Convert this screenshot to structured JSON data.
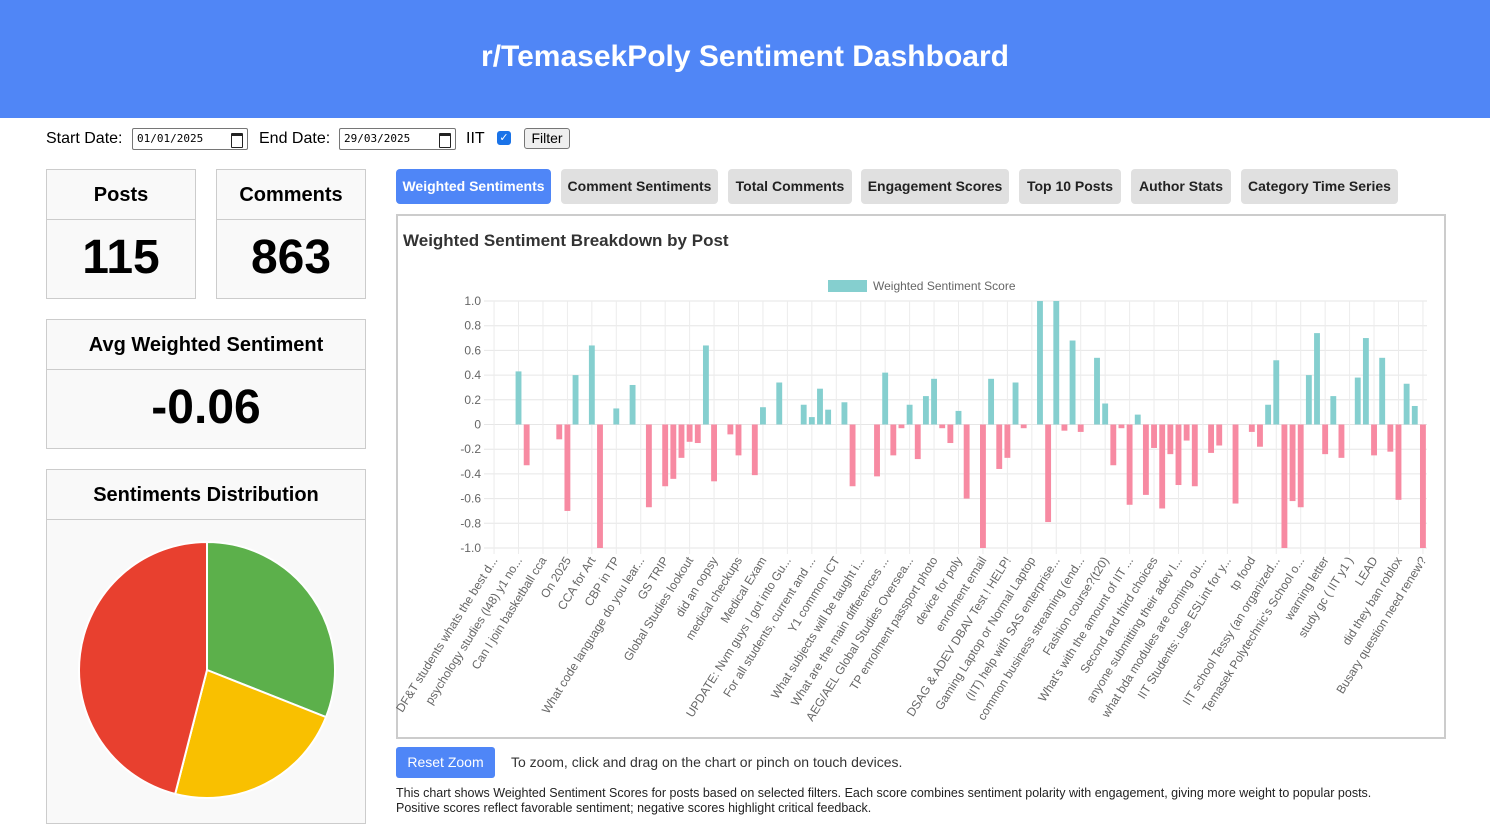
{
  "header": {
    "title": "r/TemasekPoly Sentiment Dashboard"
  },
  "filters": {
    "start_label": "Start Date:",
    "start_date": "01/01/2025",
    "end_label": "End Date:",
    "end_date": "29/03/2025",
    "checkbox_label": "IIT",
    "checked": true,
    "button": "Filter"
  },
  "stats": [
    {
      "label": "Posts",
      "value": 115
    },
    {
      "label": "Comments",
      "value": 863
    },
    {
      "label": "Avg Weighted Sentiment",
      "value": -0.06
    }
  ],
  "tabs": {
    "items": [
      "Weighted Sentiments",
      "Comment Sentiments",
      "Total Comments",
      "Engagement Scores",
      "Top 10 Posts",
      "Author Stats",
      "Category Time Series"
    ],
    "active": 0
  },
  "chart_data": [
    {
      "type": "bar",
      "title": "Weighted Sentiment Breakdown by Post",
      "categories": [
        "DF&T students whats the best d...",
        null,
        null,
        "psychology studies (l48) y1 no...",
        null,
        null,
        "Can I join basketball cca",
        null,
        null,
        "On 2025",
        null,
        null,
        "CCA for Art",
        null,
        null,
        "CBP in TP",
        null,
        null,
        "What code language do you lear...",
        null,
        null,
        "GS TRIP",
        null,
        null,
        "Global Studies lookout",
        null,
        null,
        "did an oopsy",
        null,
        null,
        "medical checkups",
        null,
        null,
        "Medical Exam",
        null,
        null,
        "UPDATE: Nvm guys I got into Gu...",
        null,
        null,
        "For all students, current and ...",
        null,
        null,
        "Y1 common ICT",
        null,
        null,
        "What subjects will be taught i...",
        null,
        null,
        "What are the main differences ...",
        null,
        null,
        "AEG/AEL Global Studies Oversea...",
        null,
        null,
        "TP enrolment passport photo",
        null,
        null,
        "device for poly",
        null,
        null,
        "enrolment email",
        null,
        null,
        "DSAG & ADEV DBAV Test ! HELP!",
        null,
        null,
        "Gaming Laptop or Normal Laptop",
        null,
        null,
        "(IIT) help with SAS enterprise...",
        null,
        null,
        "common business streaming (end...",
        null,
        null,
        "Fashion course?(t20)",
        null,
        null,
        "What's with the amount of IIT ...",
        null,
        null,
        "Second and third choices",
        null,
        null,
        "anyone submitting their adev l...",
        null,
        null,
        "what bda modules are coming ou...",
        null,
        null,
        "IIT Students: use ESLint for y...",
        null,
        null,
        "tp food",
        null,
        null,
        "IIT school Tessy (an organized...",
        null,
        null,
        "Temasek Polytechnic's School o...",
        null,
        null,
        "warning letter",
        null,
        null,
        "study gc ( IIT y1 )",
        null,
        null,
        "LEAD",
        null,
        null,
        "did they ban roblox",
        null,
        null,
        "Busary question need renew?"
      ],
      "series": [
        {
          "name": "Weighted Sentiment Score",
          "color": "#85cfcf",
          "negative_color": "#f78aa2",
          "values": [
            0,
            0,
            0,
            0.43,
            -0.33,
            0,
            0,
            0,
            -0.12,
            -0.7,
            0.4,
            0,
            0.64,
            -1.0,
            0,
            0.13,
            0,
            0.32,
            0,
            -0.67,
            0,
            -0.5,
            -0.44,
            -0.27,
            -0.14,
            -0.15,
            0.64,
            -0.46,
            0,
            -0.08,
            -0.25,
            0,
            -0.41,
            0.14,
            0,
            0.34,
            0,
            0,
            0.16,
            0.06,
            0.29,
            0.12,
            0,
            0.18,
            -0.5,
            0,
            0,
            -0.42,
            0.42,
            -0.25,
            -0.03,
            0.16,
            -0.28,
            0.23,
            0.37,
            -0.03,
            -0.15,
            0.11,
            -0.6,
            0,
            -1.0,
            0.37,
            -0.36,
            -0.27,
            0.34,
            -0.03,
            0,
            1.0,
            -0.79,
            1.0,
            -0.05,
            0.68,
            -0.06,
            0,
            0.54,
            0.17,
            -0.33,
            -0.03,
            -0.65,
            0.08,
            -0.57,
            -0.19,
            -0.68,
            -0.24,
            -0.49,
            -0.13,
            -0.5,
            0,
            -0.23,
            -0.17,
            0,
            -0.64,
            0,
            -0.06,
            -0.18,
            0.16,
            0.52,
            -1.0,
            -0.62,
            -0.67,
            0.4,
            0.74,
            -0.24,
            0.23,
            -0.27,
            0,
            0.38,
            0.7,
            -0.25,
            0.54,
            -0.22,
            -0.61,
            0.33,
            0.15,
            -1.0
          ]
        }
      ],
      "ylim": [
        -1,
        1
      ],
      "yticks": [
        {
          "value": -1,
          "label": "-1.0"
        },
        -0.8,
        -0.6,
        -0.4,
        -0.2,
        0,
        0.2,
        0.4,
        0.6,
        0.8,
        {
          "value": 1,
          "label": "1.0"
        }
      ],
      "grid": true,
      "legend": "top"
    },
    {
      "type": "pie",
      "title": "Sentiments Distribution",
      "values": [
        31,
        23,
        46
      ],
      "colors": [
        "#5cb04b",
        "#f9c000",
        "#e8402f"
      ]
    }
  ],
  "controls": {
    "reset_button": "Reset Zoom",
    "hint": "To zoom, click and drag on the chart or pinch on touch devices."
  },
  "description": [
    "This chart shows Weighted Sentiment Scores for posts based on selected filters. Each score combines sentiment polarity with engagement, giving more weight to popular posts.",
    "Positive scores reflect favorable sentiment; negative scores highlight critical feedback."
  ]
}
